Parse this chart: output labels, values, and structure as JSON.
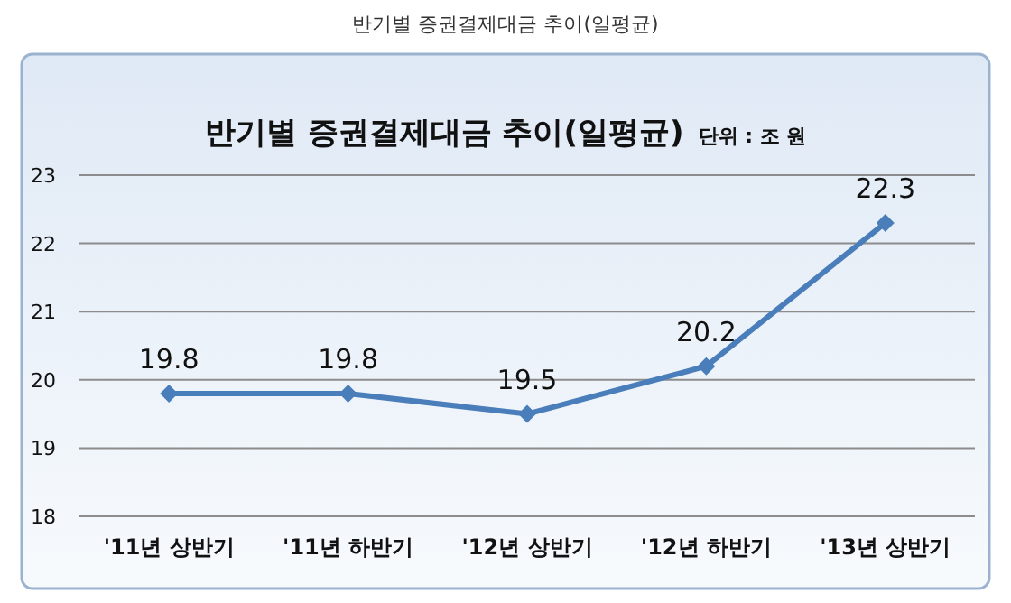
{
  "chart_data": {
    "type": "line",
    "title": "반기별 증권결제대금 추이(일평균)",
    "subtitle": "단위 : 조 원",
    "annotations": [
      "반기별 증권결제대금 추이(일평균)"
    ],
    "categories": [
      "'11년 상반기",
      "'11년 하반기",
      "'12년 상반기",
      "'12년 하반기",
      "'13년 상반기"
    ],
    "series": [
      {
        "color": "#4a7ebb",
        "values": [
          19.8,
          19.8,
          19.5,
          20.2,
          22.3
        ]
      }
    ],
    "ylim": [
      18,
      23
    ],
    "yticks": [
      18,
      19,
      20,
      21,
      22,
      23
    ],
    "grid": "y",
    "marker": "diamond",
    "line_style": "solid",
    "data_labels": true
  }
}
